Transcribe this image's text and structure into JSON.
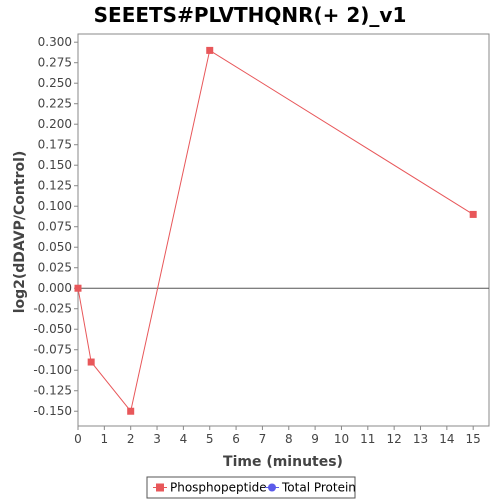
{
  "chart_data": {
    "type": "line",
    "title": "SEEETS#PLVTHQNR(+ 2)_v1",
    "xlabel": "Time (minutes)",
    "ylabel": "log2(dDAVP/Control)",
    "xlim": [
      0,
      15.6
    ],
    "ylim": [
      -0.168,
      0.31
    ],
    "x_ticks": [
      0,
      1,
      2,
      3,
      4,
      5,
      6,
      7,
      8,
      9,
      10,
      11,
      12,
      13,
      14,
      15
    ],
    "y_ticks": [
      -0.15,
      -0.125,
      -0.1,
      -0.075,
      -0.05,
      -0.025,
      0.0,
      0.025,
      0.05,
      0.075,
      0.1,
      0.125,
      0.15,
      0.175,
      0.2,
      0.225,
      0.25,
      0.275,
      0.3
    ],
    "y_tick_labels": [
      "-0.150",
      "-0.125",
      "-0.100",
      "-0.075",
      "-0.050",
      "-0.025",
      "0.000",
      "0.025",
      "0.050",
      "0.075",
      "0.100",
      "0.125",
      "0.150",
      "0.175",
      "0.200",
      "0.225",
      "0.250",
      "0.275",
      "0.300"
    ],
    "grid": false,
    "zero_line": true,
    "legend_position": "bottom",
    "series": [
      {
        "name": "Phosphopeptide",
        "color": "#e8575a",
        "marker": "square",
        "x": [
          0,
          0.5,
          2,
          5,
          15
        ],
        "y": [
          0.0,
          -0.09,
          -0.15,
          0.29,
          0.09
        ]
      },
      {
        "name": "Total Protein",
        "color": "#5b5bea",
        "marker": "circle",
        "x": [],
        "y": []
      }
    ]
  }
}
